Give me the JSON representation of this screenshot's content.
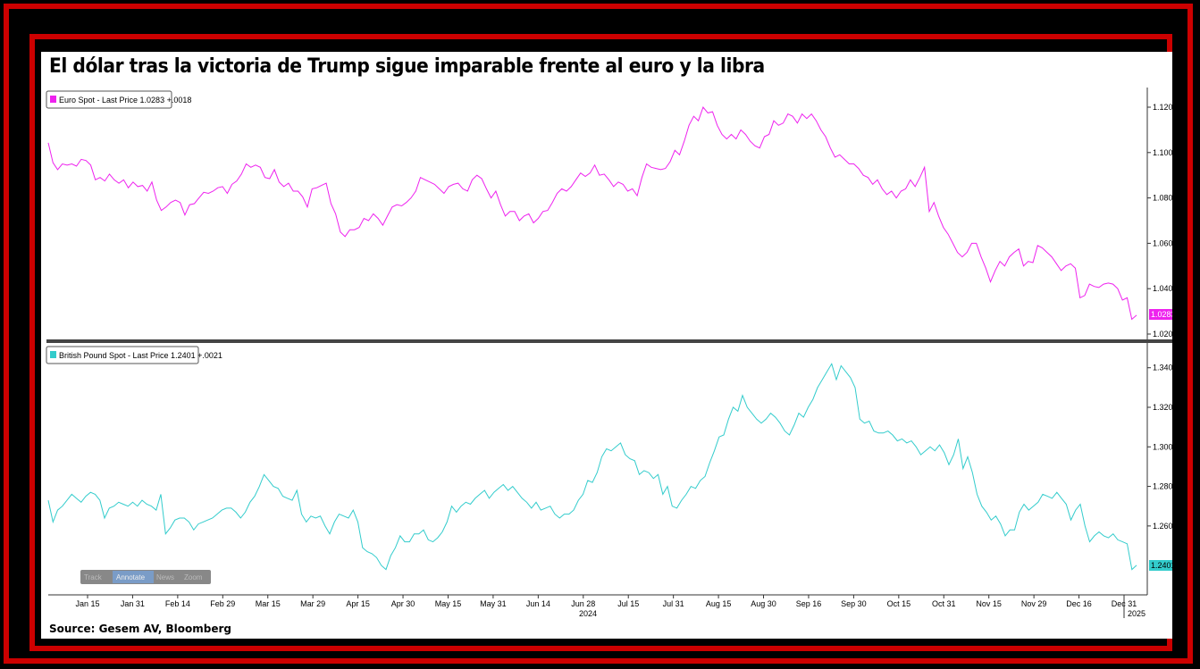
{
  "title": "El dólar tras la victoria de Trump sigue imparable frente al euro y la libra",
  "source": "Source: Gesem AV, Bloomberg",
  "toolbar": {
    "track": "Track",
    "annotate": "Annotate",
    "news": "News",
    "zoom": "Zoom"
  },
  "chart_data": [
    {
      "type": "line",
      "series": [
        {
          "name": "Euro Spot - Last Price 1.0283 +.0018",
          "color": "#ee22ee",
          "last_label": "1.0283",
          "values": [
            1.1043,
            1.0955,
            1.0925,
            1.095,
            1.0945,
            1.095,
            1.094,
            1.097,
            1.0965,
            1.0945,
            1.088,
            1.089,
            1.0875,
            1.0905,
            1.088,
            1.0865,
            1.088,
            1.0845,
            1.087,
            1.085,
            1.0855,
            1.083,
            1.087,
            1.079,
            1.0745,
            1.076,
            1.078,
            1.079,
            1.078,
            1.0725,
            1.077,
            1.0775,
            1.08,
            1.0825,
            1.082,
            1.083,
            1.0845,
            1.085,
            1.082,
            1.086,
            1.0875,
            1.0905,
            1.095,
            1.0935,
            1.0945,
            1.0935,
            1.089,
            1.0885,
            1.0925,
            1.087,
            1.085,
            1.0865,
            1.083,
            1.083,
            1.0805,
            1.076,
            1.084,
            1.0845,
            1.0855,
            1.0865,
            1.0775,
            1.073,
            1.065,
            1.063,
            1.066,
            1.066,
            1.067,
            1.071,
            1.07,
            1.073,
            1.071,
            1.068,
            1.072,
            1.076,
            1.077,
            1.0765,
            1.078,
            1.08,
            1.083,
            1.089,
            1.088,
            1.087,
            1.086,
            1.084,
            1.082,
            1.085,
            1.086,
            1.0865,
            1.084,
            1.083,
            1.088,
            1.09,
            1.0885,
            1.084,
            1.08,
            1.083,
            1.077,
            1.072,
            1.074,
            1.074,
            1.07,
            1.072,
            1.073,
            1.069,
            1.071,
            1.074,
            1.0745,
            1.078,
            1.082,
            1.084,
            1.083,
            1.085,
            1.088,
            1.091,
            1.0895,
            1.091,
            1.0945,
            1.09,
            1.0905,
            1.088,
            1.085,
            1.087,
            1.086,
            1.083,
            1.084,
            1.081,
            1.089,
            1.095,
            1.0935,
            1.093,
            1.0925,
            1.093,
            1.096,
            1.101,
            1.099,
            1.105,
            1.112,
            1.116,
            1.114,
            1.12,
            1.1175,
            1.118,
            1.112,
            1.108,
            1.106,
            1.108,
            1.106,
            1.11,
            1.108,
            1.105,
            1.103,
            1.102,
            1.107,
            1.108,
            1.114,
            1.112,
            1.113,
            1.117,
            1.116,
            1.113,
            1.117,
            1.115,
            1.117,
            1.114,
            1.11,
            1.107,
            1.102,
            1.098,
            1.099,
            1.097,
            1.095,
            1.095,
            1.093,
            1.09,
            1.089,
            1.086,
            1.088,
            1.084,
            1.0815,
            1.083,
            1.08,
            1.083,
            1.084,
            1.088,
            1.085,
            1.089,
            1.0935,
            1.074,
            1.078,
            1.072,
            1.067,
            1.064,
            1.06,
            1.056,
            1.054,
            1.056,
            1.06,
            1.06,
            1.054,
            1.049,
            1.043,
            1.048,
            1.052,
            1.05,
            1.054,
            1.056,
            1.0575,
            1.05,
            1.052,
            1.0515,
            1.059,
            1.058,
            1.056,
            1.054,
            1.051,
            1.048,
            1.05,
            1.051,
            1.049,
            1.036,
            1.037,
            1.042,
            1.041,
            1.0405,
            1.042,
            1.0425,
            1.042,
            1.04,
            1.035,
            1.036,
            1.0265,
            1.0283
          ]
        }
      ],
      "ylim": [
        1.02,
        1.12
      ],
      "yticks": [
        "1.1200",
        "1.1000",
        "1.0800",
        "1.0600",
        "1.0400",
        "1.0200"
      ],
      "legend": "top-left"
    },
    {
      "type": "line",
      "series": [
        {
          "name": "British Pound Spot - Last Price 1.2401 +.0021",
          "color": "#33cccc",
          "last_label": "1.2401",
          "values": [
            1.273,
            1.262,
            1.268,
            1.27,
            1.273,
            1.276,
            1.274,
            1.272,
            1.275,
            1.277,
            1.276,
            1.273,
            1.264,
            1.269,
            1.27,
            1.272,
            1.271,
            1.27,
            1.272,
            1.27,
            1.273,
            1.271,
            1.27,
            1.268,
            1.276,
            1.256,
            1.259,
            1.263,
            1.264,
            1.264,
            1.262,
            1.258,
            1.261,
            1.262,
            1.263,
            1.264,
            1.266,
            1.268,
            1.269,
            1.269,
            1.267,
            1.264,
            1.267,
            1.272,
            1.275,
            1.28,
            1.286,
            1.283,
            1.28,
            1.279,
            1.275,
            1.274,
            1.273,
            1.278,
            1.266,
            1.262,
            1.265,
            1.264,
            1.265,
            1.26,
            1.256,
            1.262,
            1.266,
            1.265,
            1.264,
            1.268,
            1.262,
            1.249,
            1.247,
            1.246,
            1.244,
            1.24,
            1.238,
            1.245,
            1.249,
            1.255,
            1.252,
            1.252,
            1.256,
            1.256,
            1.258,
            1.253,
            1.252,
            1.254,
            1.257,
            1.262,
            1.27,
            1.267,
            1.27,
            1.272,
            1.271,
            1.274,
            1.276,
            1.278,
            1.274,
            1.277,
            1.279,
            1.281,
            1.278,
            1.28,
            1.277,
            1.274,
            1.272,
            1.269,
            1.272,
            1.268,
            1.269,
            1.27,
            1.266,
            1.264,
            1.266,
            1.266,
            1.268,
            1.273,
            1.276,
            1.283,
            1.282,
            1.287,
            1.295,
            1.299,
            1.298,
            1.3,
            1.302,
            1.296,
            1.294,
            1.293,
            1.286,
            1.288,
            1.287,
            1.284,
            1.286,
            1.276,
            1.28,
            1.27,
            1.269,
            1.273,
            1.276,
            1.28,
            1.279,
            1.283,
            1.285,
            1.292,
            1.298,
            1.305,
            1.306,
            1.314,
            1.32,
            1.318,
            1.326,
            1.32,
            1.317,
            1.314,
            1.312,
            1.314,
            1.317,
            1.315,
            1.312,
            1.308,
            1.306,
            1.311,
            1.317,
            1.315,
            1.32,
            1.324,
            1.33,
            1.334,
            1.338,
            1.342,
            1.334,
            1.341,
            1.338,
            1.335,
            1.33,
            1.314,
            1.312,
            1.313,
            1.308,
            1.307,
            1.307,
            1.308,
            1.306,
            1.303,
            1.304,
            1.302,
            1.303,
            1.3,
            1.296,
            1.298,
            1.3,
            1.298,
            1.301,
            1.297,
            1.291,
            1.296,
            1.304,
            1.289,
            1.295,
            1.287,
            1.276,
            1.27,
            1.267,
            1.263,
            1.265,
            1.261,
            1.255,
            1.258,
            1.258,
            1.267,
            1.271,
            1.268,
            1.27,
            1.272,
            1.276,
            1.275,
            1.274,
            1.277,
            1.274,
            1.271,
            1.263,
            1.268,
            1.271,
            1.26,
            1.252,
            1.255,
            1.257,
            1.255,
            1.254,
            1.256,
            1.253,
            1.252,
            1.251,
            1.238,
            1.2401
          ]
        }
      ],
      "ylim": [
        1.236,
        1.348
      ],
      "yticks": [
        "1.3400",
        "1.3200",
        "1.3000",
        "1.2800",
        "1.2600"
      ],
      "legend": "top-left"
    }
  ],
  "x_axis": {
    "ticks": [
      "Jan 15",
      "Jan 31",
      "Feb 14",
      "Feb 29",
      "Mar 15",
      "Mar 29",
      "Apr 15",
      "Apr 30",
      "May 15",
      "May 31",
      "Jun 14",
      "Jun 28",
      "Jul 15",
      "Jul 31",
      "Aug 15",
      "Aug 30",
      "Sep 16",
      "Sep 30",
      "Oct 15",
      "Oct 31",
      "Nov 15",
      "Nov 29",
      "Dec 16",
      "Dec 31"
    ],
    "year_labels": [
      "2024",
      "2025"
    ]
  }
}
